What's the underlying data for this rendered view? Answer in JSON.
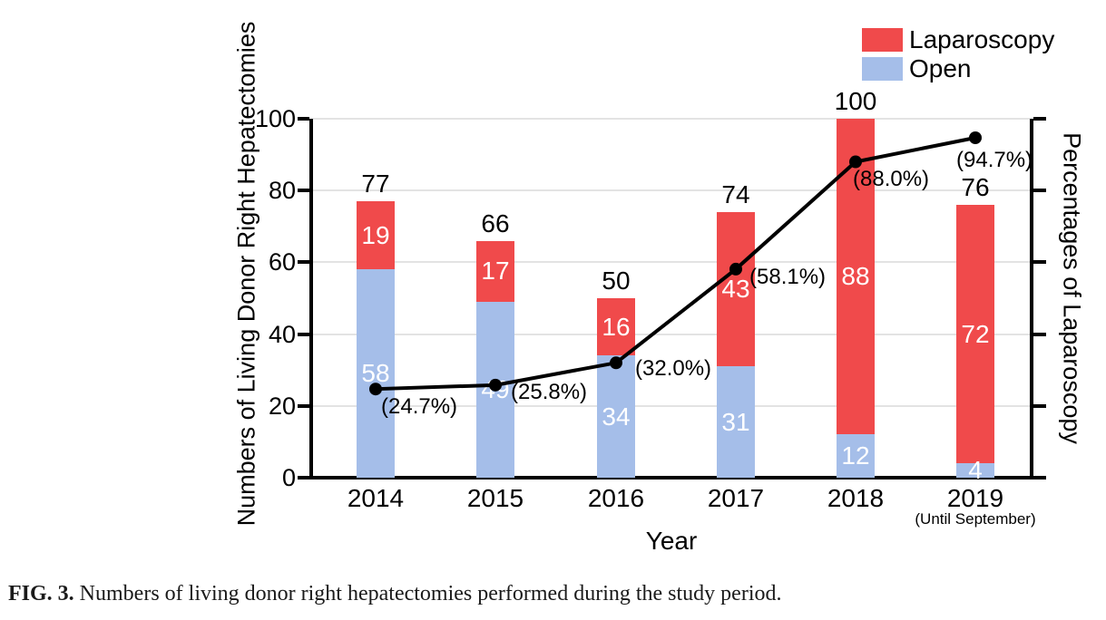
{
  "figure": {
    "caption_tag": "FIG. 3.",
    "caption_text": " Numbers of living donor right hepatectomies performed during the study period."
  },
  "legend": {
    "items": [
      {
        "label": "Laparoscopy",
        "color": "#F04A4B"
      },
      {
        "label": "Open",
        "color": "#A5BEE9"
      }
    ]
  },
  "axes": {
    "left_title": "Numbers of Living Donor Right Hepatectomies",
    "right_title": "Percentages of Laparoscopy",
    "x_title": "Year",
    "left_tick_labels": [
      "100",
      "80",
      "60",
      "40",
      "20",
      "0"
    ]
  },
  "chart_data": {
    "type": "bar",
    "subtype": "stacked-bars-with-percentage-line",
    "title": "",
    "xlabel": "Year",
    "ylabel_left": "Numbers of Living Donor Right Hepatectomies",
    "ylabel_right": "Percentages of Laparoscopy",
    "categories": [
      "2014",
      "2015",
      "2016",
      "2017",
      "2018",
      "2019"
    ],
    "category_note": {
      "index": 5,
      "text": "(Until September)"
    },
    "series": [
      {
        "name": "Open",
        "type": "bar",
        "color": "#A5BEE9",
        "values": [
          58,
          49,
          34,
          31,
          12,
          4
        ]
      },
      {
        "name": "Laparoscopy",
        "type": "bar",
        "color": "#F04A4B",
        "values": [
          19,
          17,
          16,
          43,
          88,
          72
        ]
      },
      {
        "name": "Laparoscopy percentage",
        "type": "line",
        "color": "#000000",
        "values": [
          24.7,
          25.8,
          32.0,
          58.1,
          88.0,
          94.7
        ],
        "point_labels": [
          "(24.7%)",
          "(25.8%)",
          "(32.0%)",
          "(58.1%)",
          "(88.0%)",
          "(94.7%)"
        ]
      }
    ],
    "totals": [
      77,
      66,
      50,
      74,
      100,
      76
    ],
    "ylim": [
      0,
      100
    ],
    "grid": true,
    "grid_color": "#E3E3E3",
    "legend_position": "top-right"
  }
}
